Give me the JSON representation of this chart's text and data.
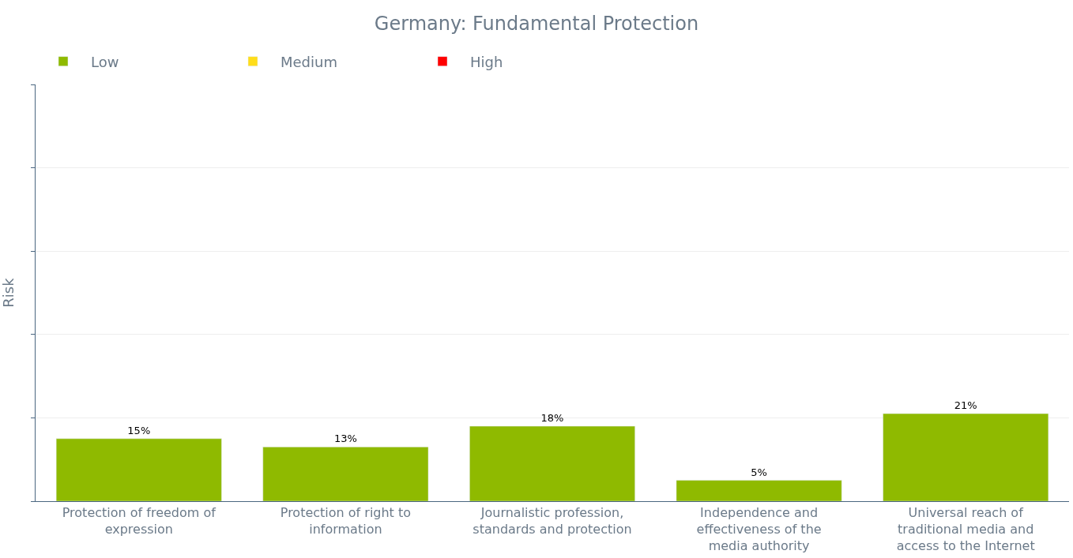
{
  "chart_data": {
    "type": "bar",
    "title": "Germany: Fundamental Protection",
    "ylabel": "Risk",
    "categories": [
      "Protection of freedom of expression",
      "Protection of right to information",
      "Journalistic profession, standards and protection",
      "Independence and effectiveness of the media authority",
      "Universal reach of traditional media and access to the Internet"
    ],
    "series": [
      {
        "name": "Low",
        "color": "#8fba00",
        "values": [
          15,
          13,
          18,
          5,
          21
        ],
        "value_labels": [
          "15%",
          "13%",
          "18%",
          "5%",
          "21%"
        ]
      },
      {
        "name": "Medium",
        "color": "#ffdd1a",
        "values": [
          null,
          null,
          null,
          null,
          null
        ]
      },
      {
        "name": "High",
        "color": "#ff0000",
        "values": [
          null,
          null,
          null,
          null,
          null
        ]
      }
    ],
    "ylim": [
      0,
      100
    ],
    "yticks": [
      {
        "value": 0,
        "label": null
      },
      {
        "value": 20,
        "label": null
      },
      {
        "value": 40,
        "label": null
      },
      {
        "value": 60,
        "label": null
      },
      {
        "value": 80,
        "label": null
      },
      {
        "value": 100,
        "label": null
      }
    ],
    "tick_labels": "x",
    "grid": "y",
    "legend": "top left"
  }
}
